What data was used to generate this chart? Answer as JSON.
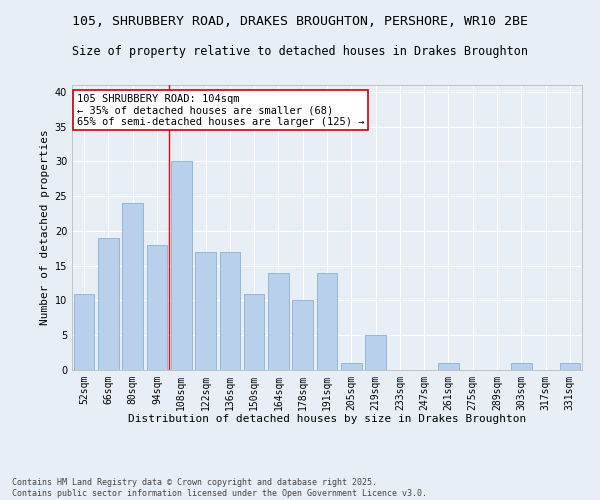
{
  "title_line1": "105, SHRUBBERY ROAD, DRAKES BROUGHTON, PERSHORE, WR10 2BE",
  "title_line2": "Size of property relative to detached houses in Drakes Broughton",
  "xlabel": "Distribution of detached houses by size in Drakes Broughton",
  "ylabel": "Number of detached properties",
  "footer_line1": "Contains HM Land Registry data © Crown copyright and database right 2025.",
  "footer_line2": "Contains public sector information licensed under the Open Government Licence v3.0.",
  "categories": [
    "52sqm",
    "66sqm",
    "80sqm",
    "94sqm",
    "108sqm",
    "122sqm",
    "136sqm",
    "150sqm",
    "164sqm",
    "178sqm",
    "191sqm",
    "205sqm",
    "219sqm",
    "233sqm",
    "247sqm",
    "261sqm",
    "275sqm",
    "289sqm",
    "303sqm",
    "317sqm",
    "331sqm"
  ],
  "values": [
    11,
    19,
    24,
    18,
    30,
    17,
    17,
    11,
    14,
    10,
    14,
    1,
    5,
    0,
    0,
    1,
    0,
    0,
    1,
    0,
    1
  ],
  "bar_color": "#b8d0eb",
  "bar_edge_color": "#8ab0d4",
  "background_color": "#e8eef6",
  "grid_color": "#ffffff",
  "annotation_text": "105 SHRUBBERY ROAD: 104sqm\n← 35% of detached houses are smaller (68)\n65% of semi-detached houses are larger (125) →",
  "annotation_box_color": "#ffffff",
  "annotation_box_edge": "#cc0000",
  "red_line_bin_index": 4,
  "ylim": [
    0,
    41
  ],
  "yticks": [
    0,
    5,
    10,
    15,
    20,
    25,
    30,
    35,
    40
  ],
  "title_fontsize": 9.5,
  "subtitle_fontsize": 8.5,
  "axis_label_fontsize": 8,
  "tick_fontsize": 7,
  "annotation_fontsize": 7.5,
  "footer_fontsize": 6
}
